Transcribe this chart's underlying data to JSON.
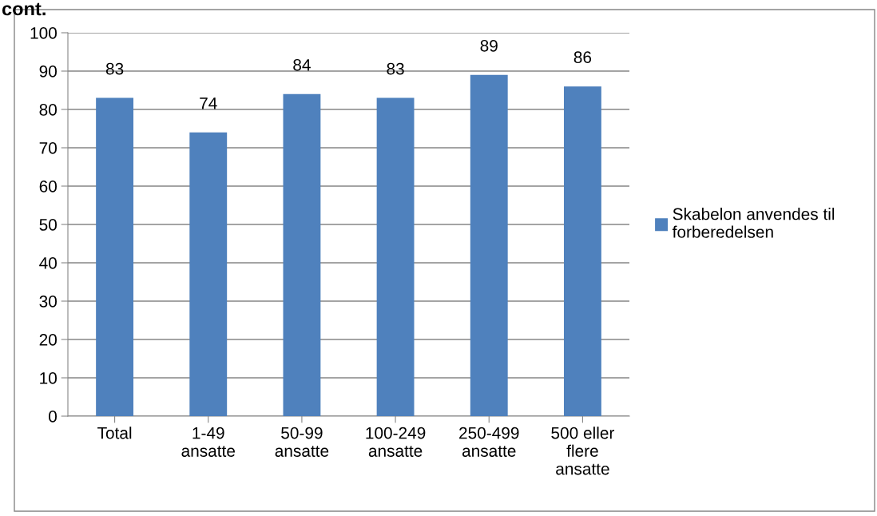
{
  "chart_data": {
    "type": "bar",
    "title": "cont.",
    "categories": [
      "Total",
      "1-49\nansatte",
      "50-99\nansatte",
      "100-249\nansatte",
      "250-499\nansatte",
      "500 eller\nflere\nansatte"
    ],
    "series": [
      {
        "name": "Skabelon anvendes til\nforberedelsen",
        "color": "#4f81bd",
        "values": [
          83,
          74,
          84,
          83,
          89,
          86
        ]
      }
    ],
    "ylim": [
      0,
      100
    ],
    "yticks": [
      0,
      10,
      20,
      30,
      40,
      50,
      60,
      70,
      80,
      90,
      100
    ],
    "grid": "y",
    "legend": "right",
    "data_labels": true
  }
}
